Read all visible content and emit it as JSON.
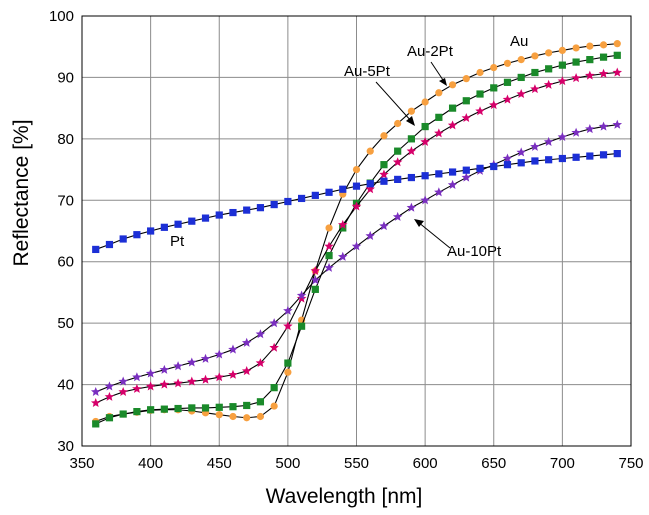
{
  "chart_data": {
    "type": "line",
    "title": "",
    "xlabel": "Wavelength [nm]",
    "ylabel": "Reflectance [%]",
    "xlim": [
      350,
      750
    ],
    "ylim": [
      30,
      100
    ],
    "xticks": [
      350,
      400,
      450,
      500,
      550,
      600,
      650,
      700,
      750
    ],
    "yticks": [
      30,
      40,
      50,
      60,
      70,
      80,
      90,
      100
    ],
    "grid": true,
    "legend": "none (series labeled by annotations)",
    "annotations": [
      {
        "text": "Au",
        "series": "Au"
      },
      {
        "text": "Au-2Pt",
        "series": "Au-2Pt"
      },
      {
        "text": "Au-5Pt",
        "series": "Au-5Pt"
      },
      {
        "text": "Au-10Pt",
        "series": "Au-10Pt"
      },
      {
        "text": "Pt",
        "series": "Pt"
      }
    ],
    "series": [
      {
        "name": "Au",
        "color": "#f7a040",
        "marker": "circle",
        "x": [
          360,
          370,
          380,
          390,
          400,
          410,
          420,
          430,
          440,
          450,
          460,
          470,
          480,
          490,
          500,
          510,
          520,
          530,
          540,
          550,
          560,
          570,
          580,
          590,
          600,
          610,
          620,
          630,
          640,
          650,
          660,
          670,
          680,
          690,
          700,
          710,
          720,
          730,
          740
        ],
        "y": [
          34.0,
          34.8,
          35.2,
          35.5,
          35.8,
          35.9,
          35.9,
          35.7,
          35.4,
          35.1,
          34.8,
          34.6,
          34.8,
          36.5,
          42.0,
          50.5,
          58.5,
          65.5,
          71.0,
          75.0,
          78.0,
          80.5,
          82.5,
          84.5,
          86.0,
          87.5,
          88.8,
          89.8,
          90.8,
          91.6,
          92.3,
          92.9,
          93.5,
          94.0,
          94.4,
          94.8,
          95.1,
          95.3,
          95.5
        ]
      },
      {
        "name": "Au-2Pt",
        "color": "#1a8a2a",
        "marker": "square",
        "x": [
          360,
          370,
          380,
          390,
          400,
          410,
          420,
          430,
          440,
          450,
          460,
          470,
          480,
          490,
          500,
          510,
          520,
          530,
          540,
          550,
          560,
          570,
          580,
          590,
          600,
          610,
          620,
          630,
          640,
          650,
          660,
          670,
          680,
          690,
          700,
          710,
          720,
          730,
          740
        ],
        "y": [
          33.6,
          34.6,
          35.2,
          35.6,
          35.9,
          36.0,
          36.1,
          36.2,
          36.2,
          36.3,
          36.4,
          36.6,
          37.2,
          39.5,
          43.5,
          49.5,
          55.5,
          61.0,
          65.5,
          69.5,
          72.8,
          75.8,
          78.0,
          80.0,
          82.0,
          83.5,
          85.0,
          86.2,
          87.3,
          88.3,
          89.2,
          90.0,
          90.8,
          91.4,
          92.0,
          92.5,
          92.9,
          93.3,
          93.6
        ]
      },
      {
        "name": "Au-5Pt",
        "color": "#d6006a",
        "marker": "star",
        "x": [
          360,
          370,
          380,
          390,
          400,
          410,
          420,
          430,
          440,
          450,
          460,
          470,
          480,
          490,
          500,
          510,
          520,
          530,
          540,
          550,
          560,
          570,
          580,
          590,
          600,
          610,
          620,
          630,
          640,
          650,
          660,
          670,
          680,
          690,
          700,
          710,
          720,
          730,
          740
        ],
        "y": [
          37.0,
          38.0,
          38.8,
          39.3,
          39.7,
          40.0,
          40.2,
          40.5,
          40.8,
          41.2,
          41.6,
          42.2,
          43.5,
          46.0,
          49.5,
          54.0,
          58.5,
          62.5,
          66.0,
          69.0,
          71.8,
          74.2,
          76.2,
          78.0,
          79.5,
          80.9,
          82.2,
          83.4,
          84.5,
          85.5,
          86.4,
          87.3,
          88.1,
          88.8,
          89.4,
          89.9,
          90.3,
          90.6,
          90.8
        ]
      },
      {
        "name": "Au-10Pt",
        "color": "#7a2fc0",
        "marker": "star",
        "x": [
          360,
          370,
          380,
          390,
          400,
          410,
          420,
          430,
          440,
          450,
          460,
          470,
          480,
          490,
          500,
          510,
          520,
          530,
          540,
          550,
          560,
          570,
          580,
          590,
          600,
          610,
          620,
          630,
          640,
          650,
          660,
          670,
          680,
          690,
          700,
          710,
          720,
          730,
          740
        ],
        "y": [
          38.8,
          39.7,
          40.5,
          41.2,
          41.8,
          42.4,
          43.0,
          43.6,
          44.2,
          44.9,
          45.7,
          46.8,
          48.2,
          50.0,
          52.0,
          54.5,
          57.0,
          59.0,
          60.8,
          62.5,
          64.2,
          65.8,
          67.3,
          68.8,
          70.0,
          71.3,
          72.5,
          73.7,
          74.8,
          75.8,
          76.8,
          77.8,
          78.7,
          79.5,
          80.3,
          81.0,
          81.6,
          82.0,
          82.3
        ]
      },
      {
        "name": "Pt",
        "color": "#1c2fd6",
        "marker": "square",
        "x": [
          360,
          370,
          380,
          390,
          400,
          410,
          420,
          430,
          440,
          450,
          460,
          470,
          480,
          490,
          500,
          510,
          520,
          530,
          540,
          550,
          560,
          570,
          580,
          590,
          600,
          610,
          620,
          630,
          640,
          650,
          660,
          670,
          680,
          690,
          700,
          710,
          720,
          730,
          740
        ],
        "y": [
          62.0,
          62.8,
          63.7,
          64.4,
          65.0,
          65.6,
          66.1,
          66.6,
          67.1,
          67.6,
          68.0,
          68.4,
          68.8,
          69.3,
          69.8,
          70.3,
          70.8,
          71.3,
          71.8,
          72.3,
          72.7,
          73.1,
          73.4,
          73.7,
          74.0,
          74.3,
          74.6,
          74.9,
          75.2,
          75.5,
          75.8,
          76.1,
          76.4,
          76.6,
          76.8,
          77.0,
          77.2,
          77.4,
          77.6
        ]
      }
    ]
  }
}
